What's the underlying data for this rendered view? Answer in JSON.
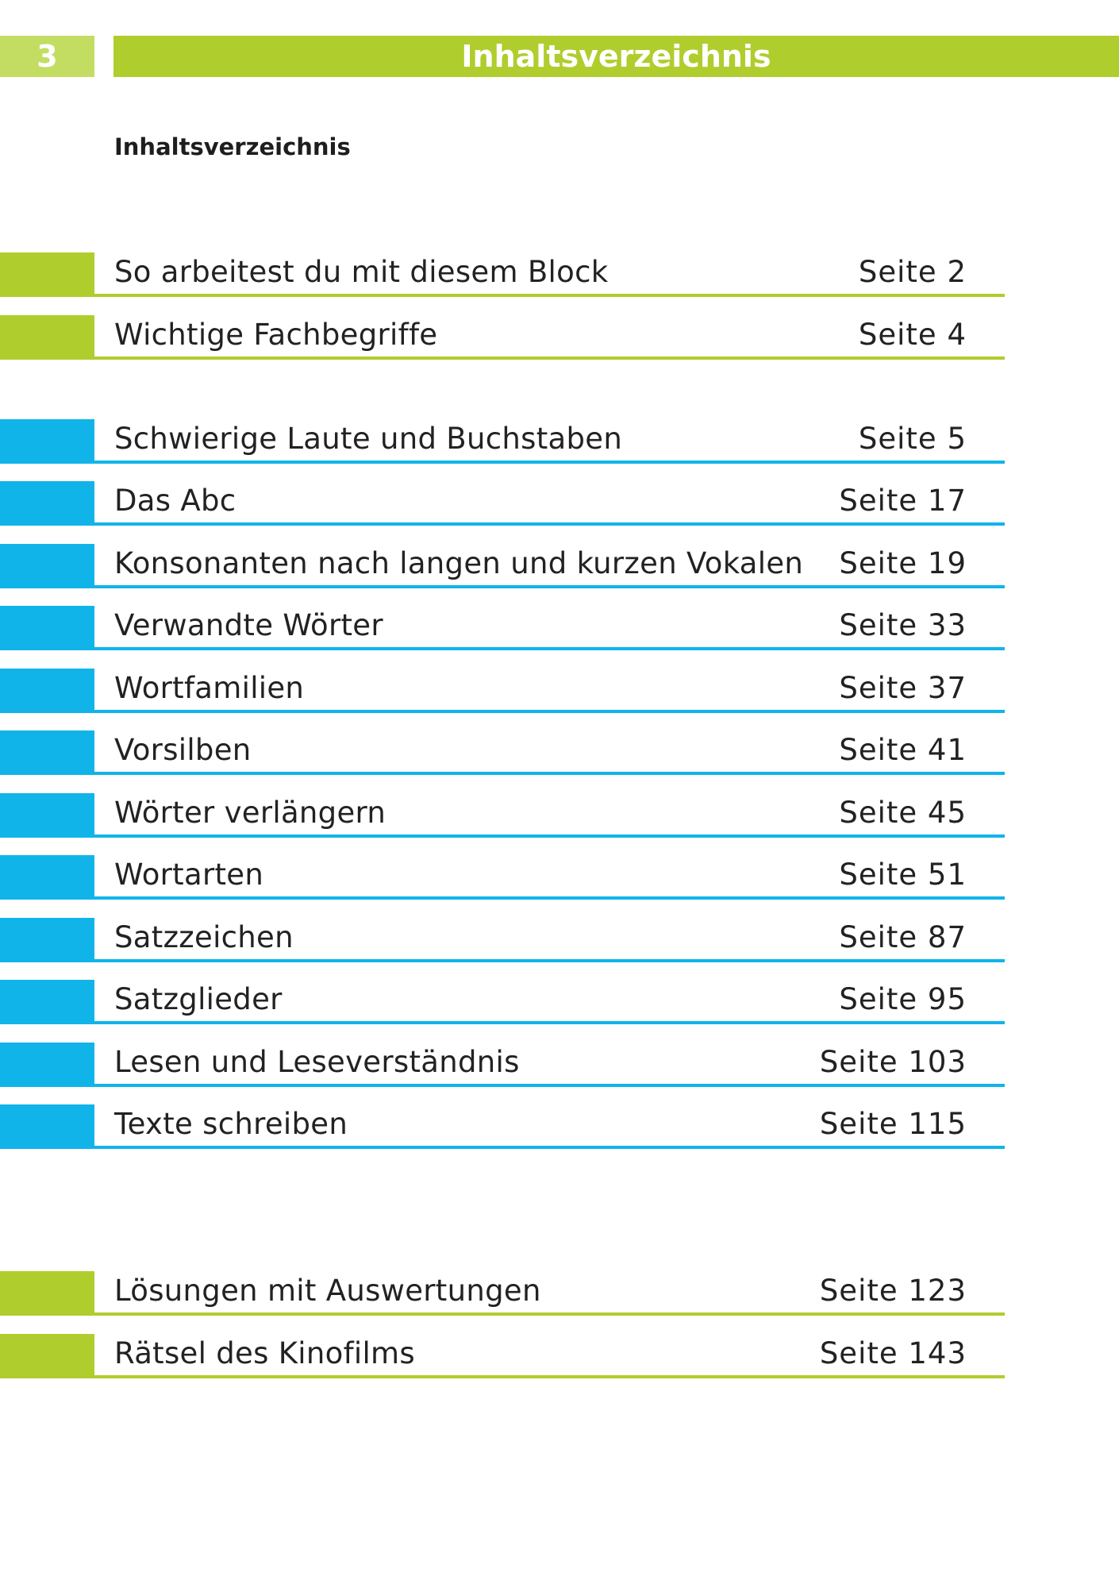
{
  "header": {
    "page_number": "3",
    "title": "Inhaltsverzeichnis"
  },
  "heading": "Inhaltsverzeichnis",
  "colors": {
    "green": "#afcd2d",
    "light_green": "#c3dd62",
    "blue": "#11b4e9"
  },
  "entries": [
    {
      "title": "So arbeitest du mit diesem Block",
      "page": "Seite 2",
      "color": "green"
    },
    {
      "title": "Wichtige Fachbegriffe",
      "page": "Seite 4",
      "color": "green"
    },
    {
      "title": "Schwierige Laute und Buchstaben",
      "page": "Seite 5",
      "color": "blue"
    },
    {
      "title": "Das Abc",
      "page": "Seite 17",
      "color": "blue"
    },
    {
      "title": "Konsonanten nach langen und kurzen Vokalen",
      "page": "Seite 19",
      "color": "blue"
    },
    {
      "title": "Verwandte Wörter",
      "page": "Seite 33",
      "color": "blue"
    },
    {
      "title": "Wortfamilien",
      "page": "Seite 37",
      "color": "blue"
    },
    {
      "title": "Vorsilben",
      "page": "Seite 41",
      "color": "blue"
    },
    {
      "title": "Wörter verlängern",
      "page": "Seite 45",
      "color": "blue"
    },
    {
      "title": "Wortarten",
      "page": "Seite 51",
      "color": "blue"
    },
    {
      "title": "Satzzeichen",
      "page": "Seite 87",
      "color": "blue"
    },
    {
      "title": "Satzglieder",
      "page": "Seite 95",
      "color": "blue"
    },
    {
      "title": "Lesen und Leseverständnis",
      "page": "Seite 103",
      "color": "blue"
    },
    {
      "title": "Texte schreiben",
      "page": "Seite 115",
      "color": "blue"
    },
    {
      "title": "Lösungen mit Auswertungen",
      "page": "Seite 123",
      "color": "green"
    },
    {
      "title": "Rätsel des Kinofilms",
      "page": "Seite 143",
      "color": "green"
    }
  ]
}
